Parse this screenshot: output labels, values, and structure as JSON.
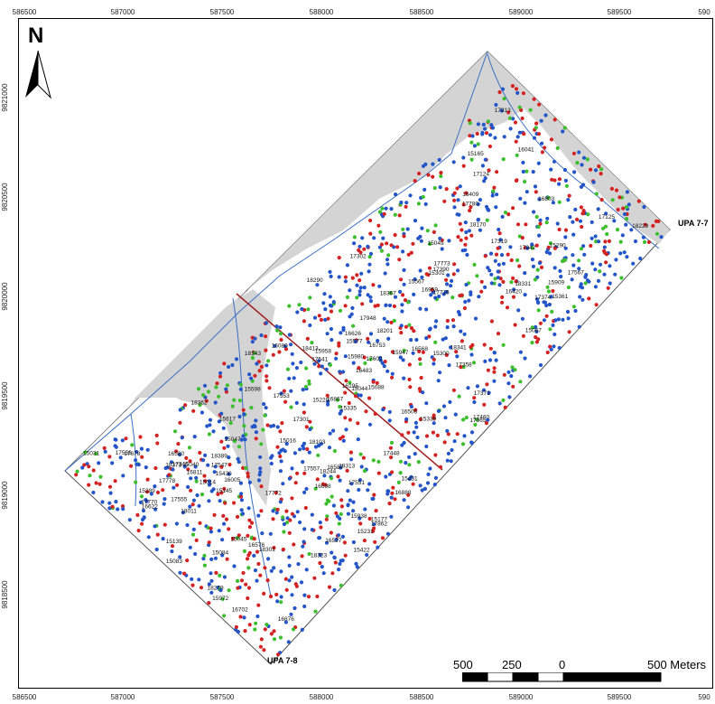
{
  "map": {
    "north_label": "N",
    "x_ticks": [
      "586500",
      "587000",
      "587500",
      "588000",
      "588500",
      "589000",
      "589500",
      "590"
    ],
    "y_ticks": [
      "9821000",
      "9820500",
      "9820000",
      "9819500",
      "9819000",
      "9818500"
    ],
    "region_labels": {
      "upa77": "UPA 7-7",
      "upa78": "UPA 7-8"
    },
    "scale_bar": {
      "labels": [
        "500",
        "250",
        "0",
        "500 Meters"
      ]
    },
    "colors": {
      "polygon_fill": "#ffffff",
      "gray_area": "#d4d4d4",
      "boundary": "#555555",
      "river": "#3a6fc4",
      "road": "#a0201f",
      "dot_blue": "#2455c8",
      "dot_red": "#d42222",
      "dot_green": "#3bbf2c"
    },
    "tree_ids": [
      "15047",
      "15049",
      "15045",
      "15044",
      "15040",
      "15031",
      "15084",
      "15067",
      "15016",
      "15014",
      "15088",
      "15083",
      "15139",
      "15145",
      "15231",
      "15229",
      "15177",
      "15335",
      "15339",
      "15361",
      "15617",
      "15289",
      "15290",
      "15301",
      "15165",
      "15300",
      "15422",
      "15431",
      "15430",
      "15567",
      "15598",
      "15577",
      "15938",
      "15980",
      "16195",
      "16080",
      "16483",
      "16580",
      "16587",
      "16803",
      "16702",
      "16959",
      "16811",
      "16876",
      "16753",
      "16626",
      "16888",
      "16867",
      "17556",
      "17557",
      "17555",
      "17547",
      "17541",
      "17567",
      "17551",
      "17553",
      "17770",
      "17772",
      "17773",
      "17778",
      "17942",
      "17948",
      "18244",
      "18413",
      "18331",
      "18341",
      "18343",
      "18362",
      "18323",
      "16005",
      "18313",
      "18373",
      "18367",
      "18389",
      "15909",
      "16041",
      "15958",
      "15972",
      "15947",
      "16622",
      "16698",
      "16568",
      "16576",
      "16409",
      "16420",
      "16506",
      "16527",
      "17124",
      "17125",
      "17313",
      "17319",
      "17340",
      "17301",
      "17302",
      "17358",
      "17371",
      "17374",
      "17390",
      "17448",
      "17460",
      "17602",
      "17678",
      "17716",
      "17780",
      "17862",
      "17965",
      "18011",
      "18103",
      "18170",
      "18201",
      "18229",
      "18279",
      "18290",
      "18301"
    ]
  }
}
